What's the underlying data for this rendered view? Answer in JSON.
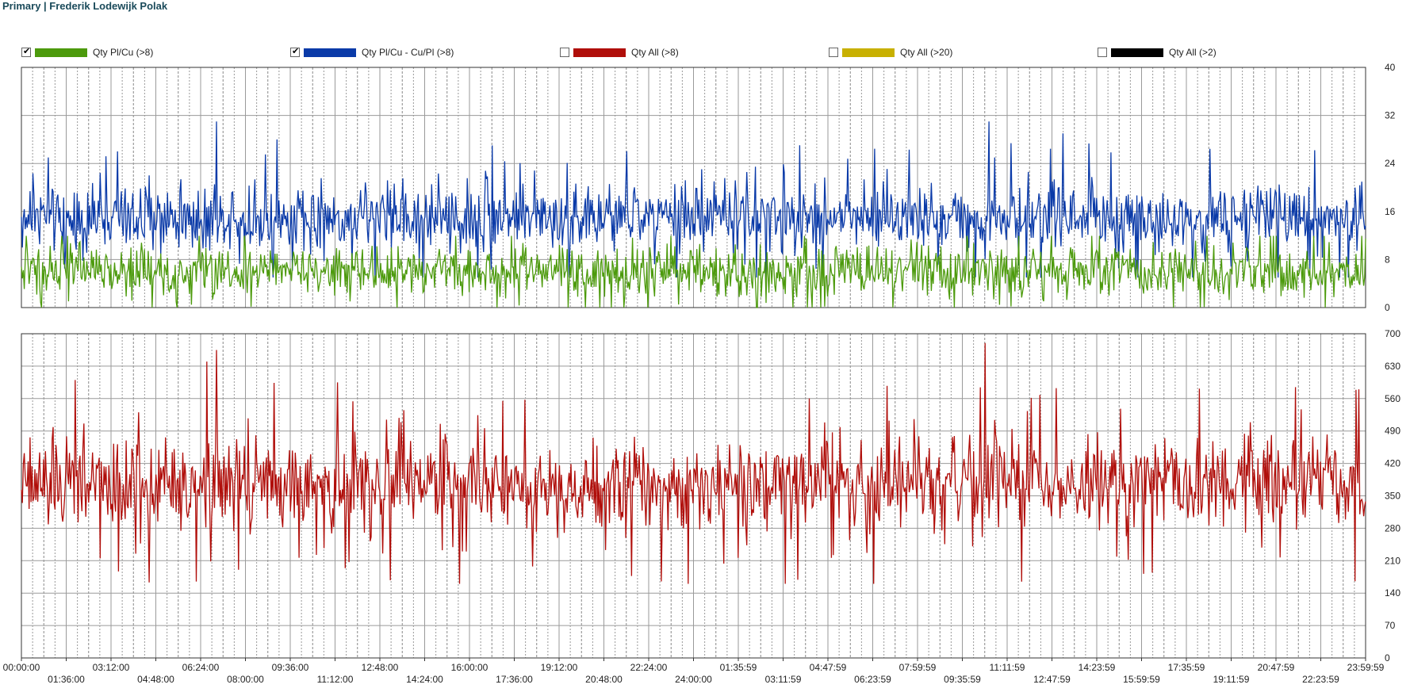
{
  "title": "Primary | Frederik Lodewijk Polak",
  "legend": [
    {
      "label": "Qty Pl/Cu (>8)",
      "color": "#4c9a0c",
      "checked": true
    },
    {
      "label": "Qty Pl/Cu - Cu/Pl (>8)",
      "color": "#0a3aa8",
      "checked": true
    },
    {
      "label": "Qty All (>8)",
      "color": "#b00e0a",
      "checked": false
    },
    {
      "label": "Qty All (>20)",
      "color": "#c8b000",
      "checked": false
    },
    {
      "label": "Qty All (>2)",
      "color": "#000000",
      "checked": false
    }
  ],
  "chart_data": [
    {
      "type": "line",
      "panel": "top",
      "ylim": [
        0,
        40
      ],
      "y_ticks": [
        "0",
        "8",
        "16",
        "24",
        "32",
        "40"
      ],
      "x_ticks": [
        "00:00:00",
        "01:36:00",
        "03:12:00",
        "04:48:00",
        "06:24:00",
        "08:00:00",
        "09:36:00",
        "11:12:00",
        "12:48:00",
        "14:24:00",
        "16:00:00",
        "17:36:00",
        "19:12:00",
        "20:48:00",
        "22:24:00",
        "24:00:00",
        "01:35:59",
        "03:11:59",
        "04:47:59",
        "06:23:59",
        "07:59:59",
        "09:35:59",
        "11:11:59",
        "12:47:59",
        "14:23:59",
        "15:59:59",
        "17:35:59",
        "19:11:59",
        "20:47:59",
        "22:23:59",
        "23:59:59"
      ],
      "grid": true,
      "series": [
        {
          "name": "Qty Pl/Cu - Cu/Pl (>8)",
          "color": "#0a3aa8",
          "mean": 15,
          "spread": 4,
          "min": 5,
          "max": 31,
          "spikes": [
            [
              0.145,
              31
            ],
            [
              0.72,
              31
            ],
            [
              0.775,
              29
            ],
            [
              0.19,
              28
            ],
            [
              0.02,
              25
            ],
            [
              0.35,
              27
            ]
          ]
        },
        {
          "name": "Qty Pl/Cu (>8)",
          "color": "#4c9a0c",
          "mean": 6,
          "spread": 3,
          "min": 0,
          "max": 13,
          "spikes": []
        }
      ]
    },
    {
      "type": "line",
      "panel": "bottom",
      "ylim": [
        0,
        700
      ],
      "y_ticks": [
        "0",
        "70",
        "140",
        "210",
        "280",
        "350",
        "420",
        "490",
        "560",
        "630",
        "700"
      ],
      "x_ticks": [
        "00:00:00",
        "01:36:00",
        "03:12:00",
        "04:48:00",
        "06:24:00",
        "08:00:00",
        "09:36:00",
        "11:12:00",
        "12:48:00",
        "14:24:00",
        "16:00:00",
        "17:36:00",
        "19:12:00",
        "20:48:00",
        "22:24:00",
        "24:00:00",
        "01:35:59",
        "03:11:59",
        "04:47:59",
        "06:23:59",
        "07:59:59",
        "09:35:59",
        "11:11:59",
        "12:47:59",
        "14:23:59",
        "15:59:59",
        "17:35:59",
        "19:11:59",
        "20:47:59",
        "22:23:59",
        "23:59:59"
      ],
      "grid": true,
      "series": [
        {
          "name": "Qty All (>8)",
          "color": "#b00e0a",
          "mean": 375,
          "spread": 70,
          "min": 160,
          "max": 680,
          "spikes": [
            [
              0.717,
              680
            ],
            [
              0.145,
              665
            ],
            [
              0.138,
              640
            ],
            [
              0.04,
              600
            ],
            [
              0.995,
              580
            ],
            [
              0.235,
              595
            ],
            [
              0.13,
              165
            ],
            [
              0.568,
              160
            ]
          ]
        }
      ]
    }
  ]
}
